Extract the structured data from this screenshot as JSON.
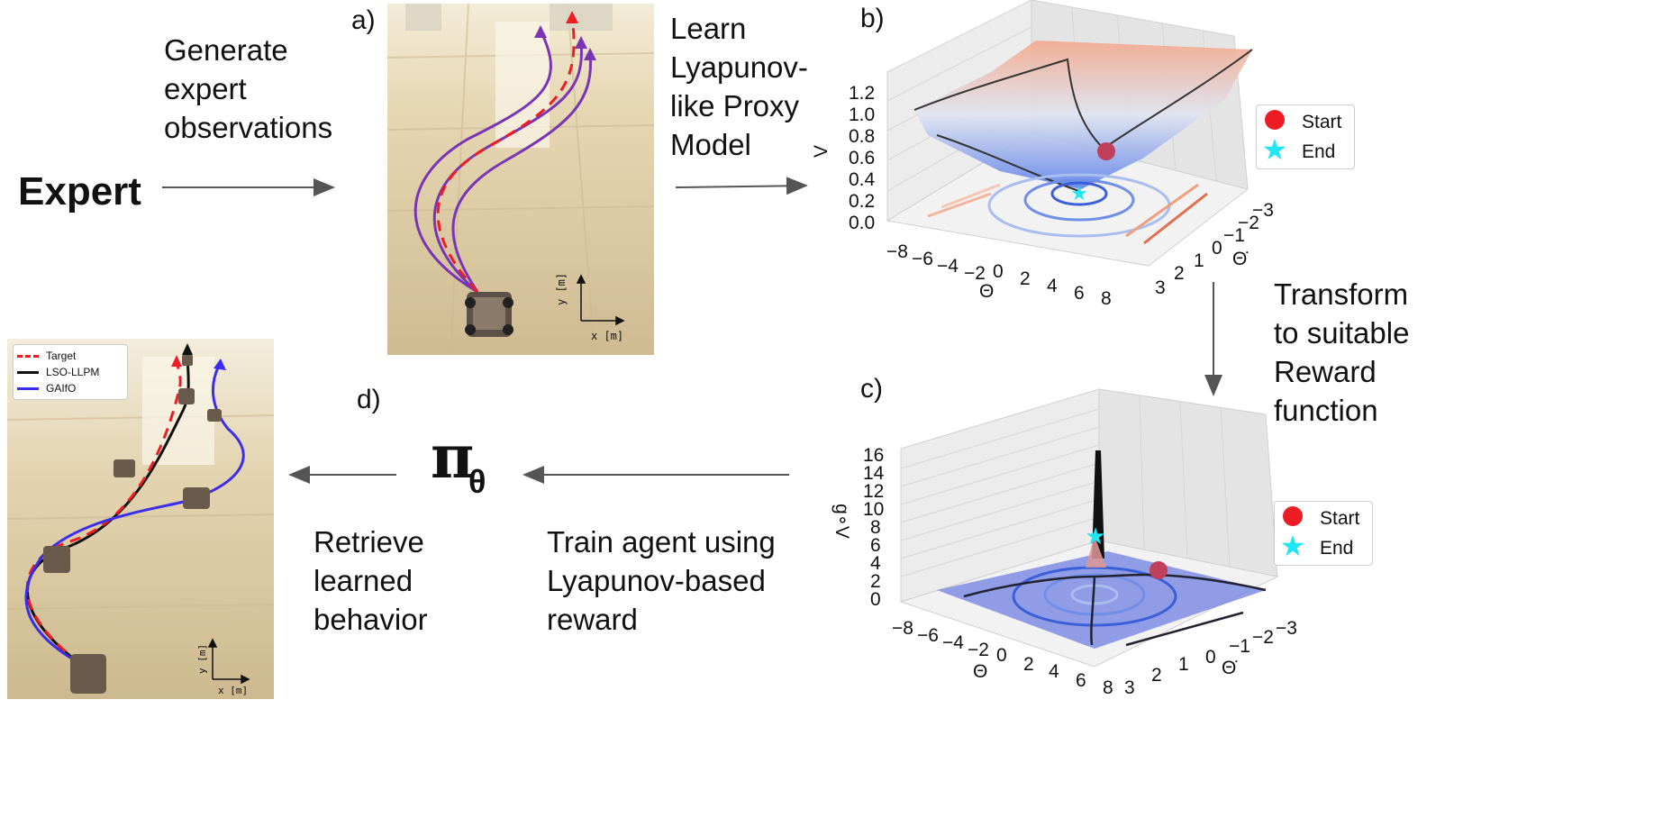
{
  "expert": "Expert",
  "generate_label": "Generate expert observations",
  "generate_lines": [
    "Generate",
    "expert",
    "observations"
  ],
  "learn_lines": [
    "Learn",
    "Lyapunov-",
    "like Proxy",
    "Model"
  ],
  "transform_lines": [
    "Transform",
    "to suitable",
    "Reward",
    "function"
  ],
  "train_lines": [
    "Train agent using",
    "Lyapunov-based",
    "reward"
  ],
  "retrieve_lines": [
    "Retrieve",
    "learned",
    "behavior"
  ],
  "policy_symbol": "π",
  "policy_sub": "θ",
  "panel_labels": {
    "a": "a)",
    "b": "b)",
    "c": "c)",
    "d": "d)"
  },
  "photo_axes": {
    "x": "x [m]",
    "y": "y [m]"
  },
  "legend_b": {
    "start": "Start",
    "end": "End"
  },
  "legend_c": {
    "start": "Start",
    "end": "End"
  },
  "legend_d": {
    "target": "Target",
    "lso": "LSO-LLPM",
    "gaifo": "GAIfO"
  },
  "plot_b": {
    "zlabel": "V",
    "ztick_labels": [
      "0.0",
      "0.2",
      "0.4",
      "0.6",
      "0.8",
      "1.0",
      "1.2"
    ],
    "xtick_labels": [
      "−8",
      "−6",
      "−4",
      "−2",
      "0",
      "2",
      "4",
      "6",
      "8"
    ],
    "ytick_labels": [
      "3",
      "2",
      "1",
      "0",
      "−1",
      "−2",
      "−3"
    ],
    "xlabel": "Θ",
    "ylabel": "Θ̇"
  },
  "plot_c": {
    "zlabel": "g∘V",
    "ztick_labels": [
      "0",
      "2",
      "4",
      "6",
      "8",
      "10",
      "12",
      "14",
      "16"
    ],
    "xtick_labels": [
      "−8",
      "−6",
      "−4",
      "−2",
      "0",
      "2",
      "4",
      "6",
      "8"
    ],
    "ytick_labels": [
      "3",
      "2",
      "1",
      "0",
      "−1",
      "−2",
      "−3"
    ],
    "xlabel": "Θ",
    "ylabel": "Θ̇"
  },
  "colors": {
    "target": "#ee1c24",
    "lso": "#111111",
    "gaifo": "#3a2df0",
    "expert_paths": "#7a35b5",
    "start": "#ee1c24",
    "end": "#1ee6f2",
    "arrow": "#555555"
  }
}
